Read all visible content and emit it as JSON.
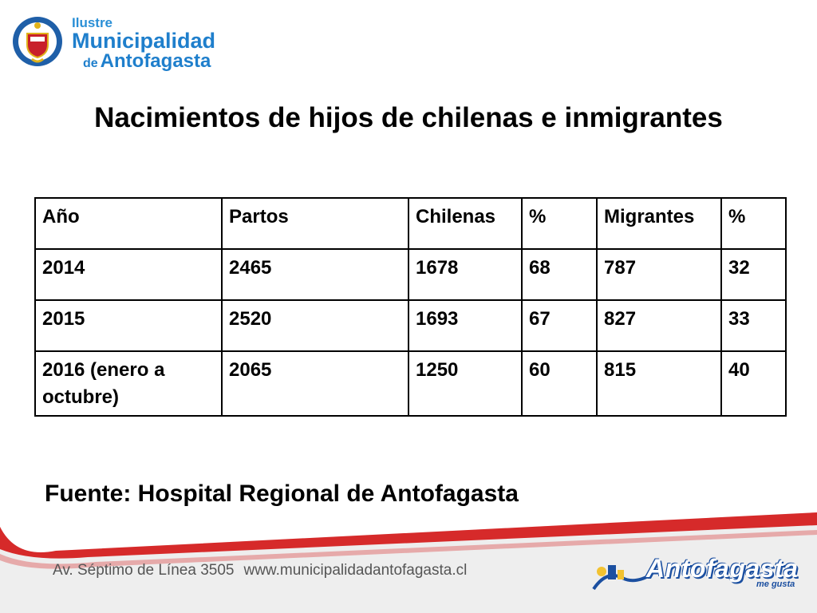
{
  "header": {
    "logo_line1": "Ilustre",
    "logo_line2": "Municipalidad",
    "logo_de": "de",
    "logo_line3": "Antofagasta"
  },
  "title": "Nacimientos de hijos de chilenas e inmigrantes",
  "table": {
    "headers": [
      "Año",
      "Partos",
      "Chilenas",
      "%",
      "Migrantes",
      "%"
    ],
    "rows": [
      [
        "2014",
        "2465",
        "1678",
        "68",
        "787",
        "32"
      ],
      [
        "2015",
        "2520",
        "1693",
        "67",
        "827",
        "33"
      ],
      [
        "2016 (enero a octubre)",
        "2065",
        "1250",
        "60",
        "815",
        "40"
      ]
    ]
  },
  "source": "Fuente: Hospital Regional de Antofagasta",
  "footer": {
    "address": "Av. Séptimo de Línea 3505",
    "website": "www.municipalidadantofagasta.cl",
    "brand": "Antofagasta",
    "brand_tag": "me gusta",
    "accent_color": "#d62a2a"
  }
}
